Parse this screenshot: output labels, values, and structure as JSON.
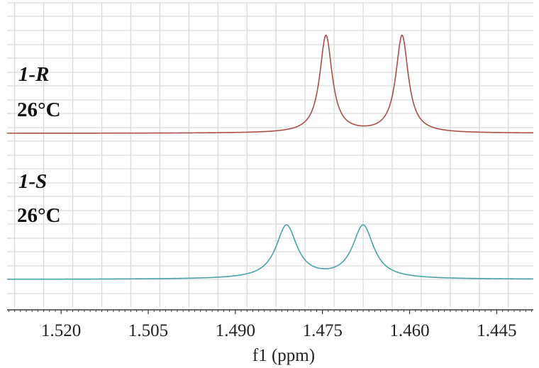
{
  "chart_data": {
    "type": "line",
    "xlabel": "f1 (ppm)",
    "x_ticks": [
      "1.520",
      "1.505",
      "1.490",
      "1.475",
      "1.460",
      "1.445"
    ],
    "x_tick_values": [
      1.52,
      1.505,
      1.49,
      1.475,
      1.46,
      1.445
    ],
    "xlim": [
      1.5293,
      1.4387
    ],
    "x_reversed": true,
    "grid": true,
    "annotations": [
      {
        "label": "1-R",
        "temperature": "26°C"
      },
      {
        "label": "1-S",
        "temperature": "26°C"
      }
    ],
    "series": [
      {
        "color": "#a94f4a",
        "baseline": 0,
        "peaks": [
          {
            "x": 1.4744,
            "height": 1.0,
            "halfwidth": 0.0013
          },
          {
            "x": 1.4613,
            "height": 1.0,
            "halfwidth": 0.0013
          }
        ]
      },
      {
        "color": "#4aa3a5",
        "baseline": 0,
        "peaks": [
          {
            "x": 1.4812,
            "height": 0.55,
            "halfwidth": 0.0022
          },
          {
            "x": 1.468,
            "height": 0.55,
            "halfwidth": 0.0022
          }
        ]
      }
    ]
  }
}
